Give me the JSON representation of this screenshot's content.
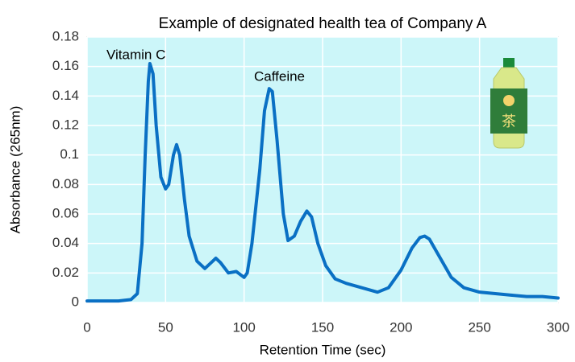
{
  "chart_data": {
    "type": "line",
    "title": "Example of designated health tea of Company A",
    "x_label": "Retention  Time (sec)",
    "y_label": "Absorbance (265nm)",
    "annotations": [
      "Vitamin C",
      "Caffeine"
    ],
    "x": [
      0,
      10,
      20,
      28,
      32,
      35,
      37,
      39,
      40,
      42,
      44,
      47,
      50,
      52,
      55,
      57,
      59,
      62,
      65,
      70,
      75,
      80,
      82,
      85,
      90,
      95,
      100,
      102,
      105,
      110,
      113,
      116,
      118,
      121,
      125,
      128,
      132,
      136,
      140,
      143,
      147,
      152,
      158,
      165,
      175,
      185,
      192,
      200,
      207,
      212,
      215,
      218,
      225,
      232,
      240,
      250,
      260,
      270,
      280,
      290,
      300
    ],
    "values": [
      0.001,
      0.001,
      0.001,
      0.002,
      0.006,
      0.04,
      0.1,
      0.15,
      0.162,
      0.155,
      0.12,
      0.085,
      0.077,
      0.08,
      0.1,
      0.107,
      0.1,
      0.07,
      0.045,
      0.028,
      0.023,
      0.028,
      0.03,
      0.027,
      0.02,
      0.021,
      0.017,
      0.02,
      0.04,
      0.09,
      0.13,
      0.145,
      0.143,
      0.11,
      0.06,
      0.042,
      0.045,
      0.055,
      0.062,
      0.058,
      0.04,
      0.025,
      0.016,
      0.013,
      0.01,
      0.007,
      0.01,
      0.022,
      0.037,
      0.044,
      0.045,
      0.043,
      0.03,
      0.017,
      0.01,
      0.007,
      0.006,
      0.005,
      0.004,
      0.004,
      0.003
    ],
    "color": "#0a70c4",
    "xlim": [
      0,
      300
    ],
    "xticks": [
      0,
      50,
      100,
      150,
      200,
      250,
      300
    ],
    "ylim": [
      0,
      0.18
    ],
    "yticks": [
      0,
      0.02,
      0.04,
      0.06,
      0.08,
      0.1,
      0.12,
      0.14,
      0.16,
      0.18
    ],
    "grid": true
  }
}
